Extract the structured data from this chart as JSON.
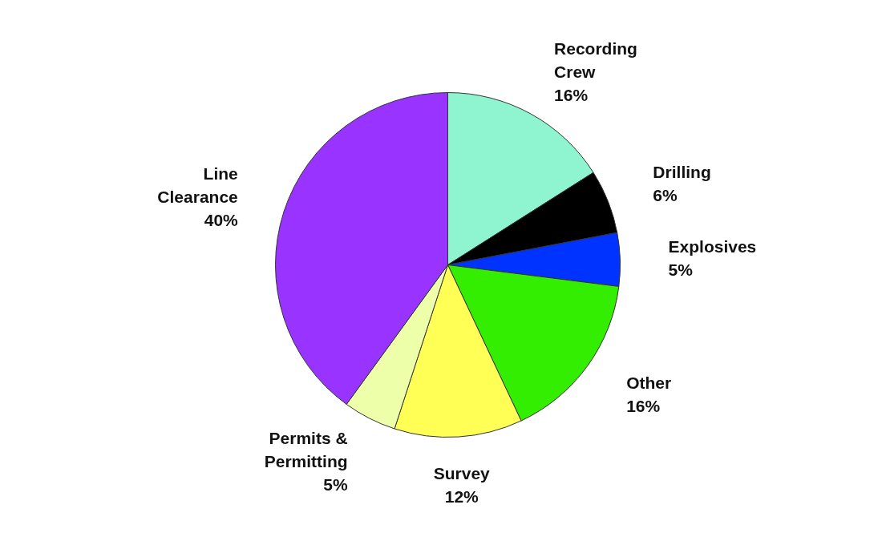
{
  "chart_data": {
    "type": "pie",
    "categories": [
      "Recording Crew",
      "Drilling",
      "Explosives",
      "Other",
      "Survey",
      "Permits & Permitting",
      "Line Clearance"
    ],
    "values": [
      16,
      6,
      5,
      16,
      12,
      5,
      40
    ],
    "value_labels": [
      "16%",
      "6%",
      "5%",
      "16%",
      "12%",
      "5%",
      "40%"
    ],
    "colors": [
      "#8ef5d0",
      "#000000",
      "#0033ff",
      "#33ee00",
      "#ffff55",
      "#eeffaa",
      "#9933ff"
    ]
  }
}
